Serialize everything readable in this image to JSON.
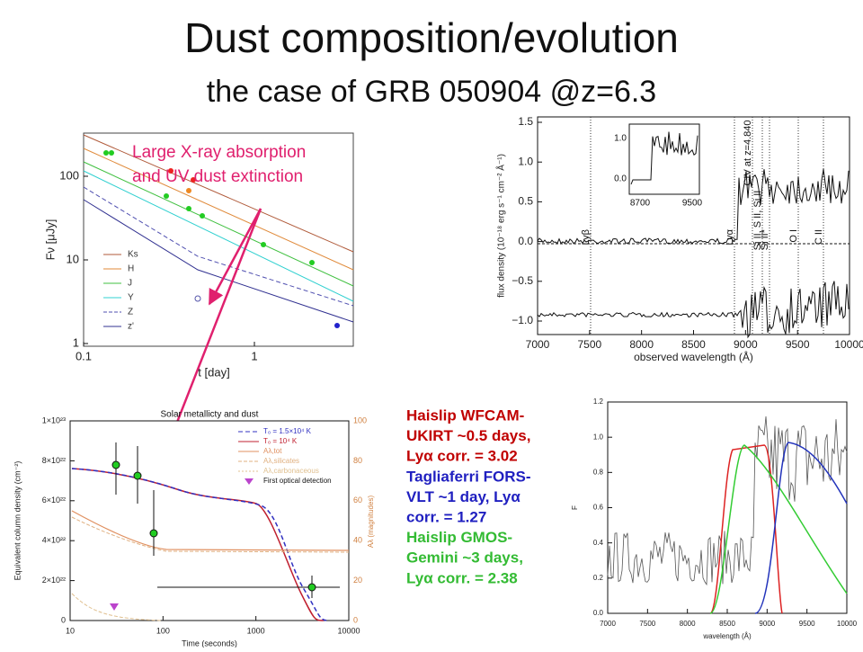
{
  "header": {
    "title": "Dust composition/evolution",
    "subtitle": "the case of GRB 050904 @z=6.3"
  },
  "annotation": "Large X-ray absorption and UV dust extinction",
  "panels": [
    {
      "yticks": [
        "100",
        "10",
        "1"
      ],
      "xticks": [
        "0.1",
        "1"
      ],
      "xlabel": "t [day]",
      "ylabel": "Fν [μJy]",
      "legend": [
        "Ks",
        "H",
        "J",
        "Y",
        "Z",
        "z'"
      ]
    },
    {
      "yticks": [
        "1.5",
        "1.0",
        "0.5",
        "0.0",
        "−0.5",
        "−1.0"
      ],
      "xticks": [
        "7000",
        "7500",
        "8000",
        "8500",
        "9000",
        "9500",
        "10000"
      ],
      "xlabel": "observed wavelength (Å)",
      "ylabel": "flux density (10⁻¹⁸ erg s⁻¹ cm⁻² Å⁻¹)",
      "lines": [
        "Lyβ",
        "Lyα",
        "CIV at z=4.840",
        "Si II, S II, Si II",
        "Si II*",
        "O I",
        "C II"
      ],
      "inset_yticks": [
        "1.0",
        "0.0"
      ],
      "inset_xticks": [
        "8700",
        "9500"
      ]
    },
    {
      "title": "Solar metallicty and dust",
      "yticks": [
        "0",
        "2×10²²",
        "4×10²²",
        "6×10²²",
        "8×10²²",
        "1×10²³"
      ],
      "y2ticks": [
        "0",
        "20",
        "40",
        "60",
        "80",
        "100"
      ],
      "xticks": [
        "10",
        "100",
        "1000",
        "10000"
      ],
      "xlabel": "Time (seconds)",
      "ylabel": "Equivalent column density (cm⁻²)",
      "y2label": "Aλ (magnitudes)",
      "legend": [
        "T₀ = 1.5×10⁴ K",
        "T₀ = 10⁴ K",
        "Aλ,tot",
        "Aλ,silicates",
        "Aλ,carbonaceous",
        "First optical detection"
      ]
    },
    {
      "yticks": [
        "0.0",
        "0.2",
        "0.4",
        "0.6",
        "0.8",
        "1.0",
        "1.2"
      ],
      "xticks": [
        "7000",
        "7500",
        "8000",
        "8500",
        "9000",
        "9500",
        "10000"
      ],
      "xlabel": "wavelength (Å)",
      "ylabel": "F"
    }
  ],
  "notes": [
    {
      "color": "#c00000",
      "lines": [
        "Haislip WFCAM-",
        "UKIRT ~0.5 days,",
        "Lyα corr. = 3.02"
      ]
    },
    {
      "color": "#1f1fc0",
      "lines": [
        "Tagliaferri FORS-",
        "VLT ~1 day, Lyα",
        "corr. = 1.27"
      ]
    },
    {
      "color": "#33bb33",
      "lines": [
        "Haislip GMOS-",
        "Gemini ~3 days,",
        "Lyα corr. = 2.38"
      ]
    }
  ]
}
